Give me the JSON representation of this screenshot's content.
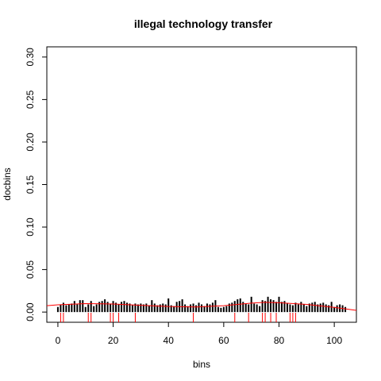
{
  "chart_data": {
    "type": "bar",
    "title": "illegal technology transfer",
    "xlabel": "bins",
    "ylabel": "docbins",
    "xlim": [
      -4,
      108
    ],
    "ylim": [
      -0.012,
      0.312
    ],
    "x_ticks": [
      0,
      20,
      40,
      60,
      80,
      100
    ],
    "y_ticks": [
      0.0,
      0.05,
      0.1,
      0.15,
      0.2,
      0.25,
      0.3
    ],
    "x_tick_labels": [
      "0",
      "20",
      "40",
      "60",
      "80",
      "100"
    ],
    "y_tick_labels": [
      "0.00",
      "0.05",
      "0.10",
      "0.15",
      "0.20",
      "0.25",
      "0.30"
    ],
    "grid": false,
    "legend": "none",
    "series": [
      {
        "type": "bar",
        "color": "#000000",
        "x": [
          0,
          1,
          2,
          3,
          4,
          5,
          6,
          7,
          8,
          9,
          10,
          11,
          12,
          13,
          14,
          15,
          16,
          17,
          18,
          19,
          20,
          21,
          22,
          23,
          24,
          25,
          26,
          27,
          28,
          29,
          30,
          31,
          32,
          33,
          34,
          35,
          36,
          37,
          38,
          39,
          40,
          41,
          42,
          43,
          44,
          45,
          46,
          47,
          48,
          49,
          50,
          51,
          52,
          53,
          54,
          55,
          56,
          57,
          58,
          59,
          60,
          61,
          62,
          63,
          64,
          65,
          66,
          67,
          68,
          69,
          70,
          71,
          72,
          73,
          74,
          75,
          76,
          77,
          78,
          79,
          80,
          81,
          82,
          83,
          84,
          85,
          86,
          87,
          88,
          89,
          90,
          91,
          92,
          93,
          94,
          95,
          96,
          97,
          98,
          99,
          100,
          101,
          102,
          103,
          104
        ],
        "values": [
          0.006,
          0.009,
          0.011,
          0.008,
          0.009,
          0.01,
          0.013,
          0.009,
          0.014,
          0.014,
          0.006,
          0.009,
          0.013,
          0.007,
          0.009,
          0.012,
          0.013,
          0.015,
          0.012,
          0.01,
          0.013,
          0.011,
          0.009,
          0.012,
          0.013,
          0.011,
          0.01,
          0.008,
          0.01,
          0.009,
          0.01,
          0.009,
          0.01,
          0.008,
          0.014,
          0.01,
          0.008,
          0.009,
          0.01,
          0.009,
          0.016,
          0.008,
          0.007,
          0.012,
          0.013,
          0.015,
          0.009,
          0.007,
          0.009,
          0.01,
          0.008,
          0.011,
          0.009,
          0.007,
          0.01,
          0.009,
          0.011,
          0.014,
          0.006,
          0.005,
          0.006,
          0.007,
          0.01,
          0.011,
          0.013,
          0.015,
          0.016,
          0.012,
          0.01,
          0.009,
          0.018,
          0.01,
          0.009,
          0.007,
          0.014,
          0.013,
          0.018,
          0.015,
          0.014,
          0.012,
          0.018,
          0.012,
          0.013,
          0.01,
          0.009,
          0.008,
          0.011,
          0.009,
          0.012,
          0.009,
          0.007,
          0.01,
          0.011,
          0.012,
          0.009,
          0.01,
          0.011,
          0.009,
          0.008,
          0.012,
          0.006,
          0.008,
          0.009,
          0.008,
          0.006
        ]
      },
      {
        "type": "rug",
        "color": "#ff0000",
        "x": [
          1,
          2,
          11,
          12,
          19,
          20,
          22,
          28,
          49,
          64,
          69,
          74,
          75,
          77,
          79,
          84,
          85,
          86
        ]
      },
      {
        "type": "line",
        "color": "#ff0000",
        "x": [
          -4,
          0,
          10,
          20,
          30,
          40,
          50,
          60,
          65,
          70,
          75,
          80,
          90,
          100,
          108
        ],
        "values": [
          0.0075,
          0.0085,
          0.01,
          0.0095,
          0.008,
          0.0065,
          0.006,
          0.0075,
          0.009,
          0.0105,
          0.0115,
          0.011,
          0.009,
          0.0055,
          0.002
        ]
      }
    ]
  }
}
